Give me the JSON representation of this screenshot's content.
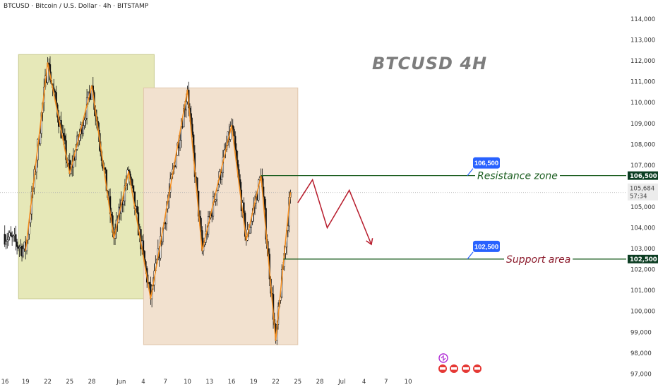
{
  "header": {
    "title": "BTCUSD · Bitcoin / U.S. Dollar · 4h · BITSTAMP",
    "watermark_title": "BTCUSD 4H"
  },
  "chart_data": {
    "type": "candlestick",
    "title": "BTCUSD 4H",
    "y_ticks": [
      "114,000",
      "113,000",
      "112,000",
      "111,000",
      "110,000",
      "109,000",
      "108,000",
      "107,000",
      "106,000",
      "105,000",
      "104,000",
      "103,000",
      "102,000",
      "101,000",
      "100,000",
      "99,000",
      "98,000",
      "97,000"
    ],
    "ylim": [
      96500,
      114500
    ],
    "x_ticks": [
      "16",
      "19",
      "22",
      "25",
      "28",
      "Jun",
      "4",
      "7",
      "10",
      "13",
      "16",
      "19",
      "22",
      "25",
      "28",
      "Jul",
      "4",
      "7",
      "10"
    ],
    "price_tags": {
      "resistance": "106,500",
      "current_price": "105,684",
      "countdown": "57:34",
      "support": "102,500"
    },
    "levels": [
      {
        "label": "Resistance zone",
        "value": 106500,
        "color": "#1b5e20"
      },
      {
        "label": "Support area",
        "value": 102500,
        "color": "#8b1a2b"
      }
    ],
    "callouts": [
      "106,500",
      "102,500"
    ],
    "zigzag": [
      {
        "date": "May 19",
        "price": 102900
      },
      {
        "date": "May 22",
        "price": 111900
      },
      {
        "date": "May 25",
        "price": 106600
      },
      {
        "date": "May 28",
        "price": 110800
      },
      {
        "date": "May 31",
        "price": 103500
      },
      {
        "date": "Jun 2",
        "price": 106700
      },
      {
        "date": "Jun 5",
        "price": 100600
      },
      {
        "date": "Jun 10",
        "price": 110600
      },
      {
        "date": "Jun 12",
        "price": 102900
      },
      {
        "date": "Jun 16",
        "price": 108900
      },
      {
        "date": "Jun 18",
        "price": 103400
      },
      {
        "date": "Jun 20",
        "price": 106500
      },
      {
        "date": "Jun 22",
        "price": 98600
      },
      {
        "date": "Jun 24",
        "price": 105700
      }
    ],
    "projection": [
      {
        "date": "Jun 25",
        "price": 105200
      },
      {
        "date": "Jun 27",
        "price": 106300
      },
      {
        "date": "Jun 29",
        "price": 104000
      },
      {
        "date": "Jul 2",
        "price": 105800
      },
      {
        "date": "Jul 5",
        "price": 103200
      }
    ],
    "zones": [
      {
        "from": "May 19",
        "to": "Jun 5",
        "high": 112300,
        "low": 100600,
        "color": "#e6e8b8"
      },
      {
        "from": "Jun 5",
        "to": "Jun 25",
        "high": 110700,
        "low": 98400,
        "color": "#f2e1cf"
      }
    ],
    "colors": {
      "up_candle": "#ffffff",
      "down_candle": "#111111",
      "zigzag": "#f28c1e",
      "projection": "#b71c2c",
      "callout": "#2962ff"
    }
  }
}
